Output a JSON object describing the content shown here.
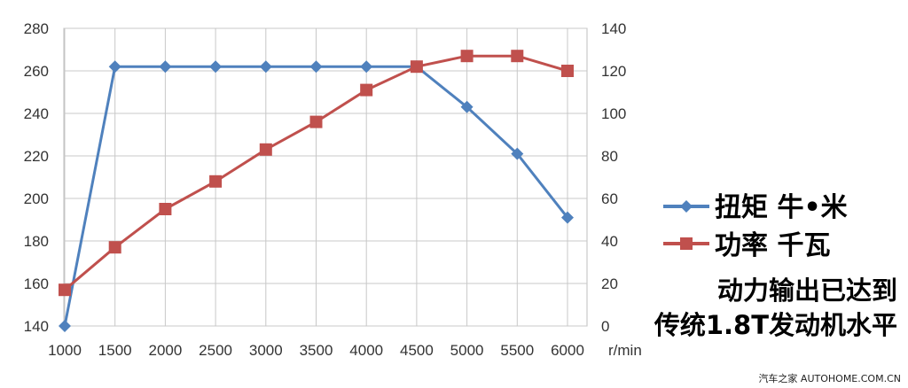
{
  "chart_data": {
    "type": "line",
    "categories": [
      "1000",
      "1500",
      "2000",
      "2500",
      "3000",
      "3500",
      "4000",
      "4500",
      "5000",
      "5500",
      "6000"
    ],
    "x_unit_label": "r/min",
    "y_left": {
      "min": 140,
      "max": 280,
      "step": 20,
      "ticks": [
        "140",
        "160",
        "180",
        "200",
        "220",
        "240",
        "260",
        "280"
      ]
    },
    "y_right": {
      "min": 0,
      "max": 140,
      "step": 20,
      "ticks": [
        "0",
        "20",
        "40",
        "60",
        "80",
        "100",
        "120",
        "140"
      ]
    },
    "grid": true,
    "series": [
      {
        "name": "扭矩 牛•米",
        "axis": "left",
        "color": "#4F81BD",
        "marker": "diamond",
        "values": [
          140,
          262,
          262,
          262,
          262,
          262,
          262,
          262,
          243,
          221,
          191
        ]
      },
      {
        "name": "功率 千瓦",
        "axis": "right",
        "color": "#C0504D",
        "marker": "square",
        "values": [
          17,
          37,
          55,
          68,
          83,
          96,
          111,
          122,
          127,
          127,
          120
        ]
      }
    ],
    "legend_position": "right"
  },
  "annotation": {
    "line1": "动力输出已达到",
    "line2": "传统1.8T发动机水平"
  },
  "watermark": "汽车之家 AUTOHOME.COM.CN"
}
